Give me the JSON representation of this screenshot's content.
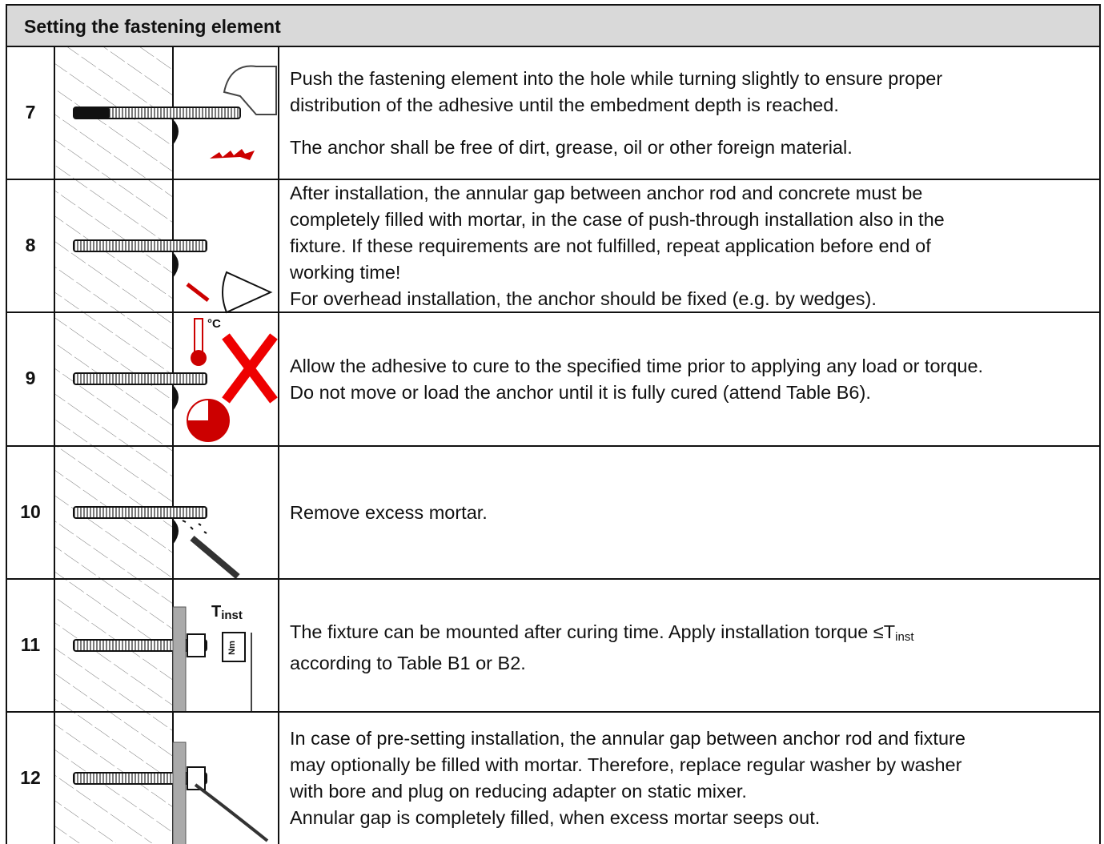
{
  "header": {
    "title": "Setting the fastening element"
  },
  "rows": [
    {
      "number": "7",
      "paragraphs": [
        [
          "Push the fastening element into the hole while turning slightly to ensure proper",
          "distribution of the adhesive until the embedment depth is reached."
        ],
        [
          "The anchor shall be free of dirt, grease, oil or other foreign material."
        ]
      ]
    },
    {
      "number": "8",
      "paragraphs": [
        [
          "After installation, the annular gap between anchor rod and concrete must be",
          "completely filled with mortar, in the case of push-through installation also in the",
          "fixture. If these requirements are not fulfilled, repeat application before end of",
          "working time!",
          "For overhead installation, the anchor should be fixed (e.g. by wedges)."
        ]
      ]
    },
    {
      "number": "9",
      "illustration_text": "°C",
      "paragraphs": [
        [
          "Allow the adhesive to cure to the specified time prior to applying any load or torque.",
          "Do not move or load the anchor until it is fully cured (attend Table B6)."
        ]
      ]
    },
    {
      "number": "10",
      "paragraphs": [
        [
          "Remove excess mortar."
        ]
      ]
    },
    {
      "number": "11",
      "illustration_text": {
        "symbol": "T",
        "subscript": "inst",
        "unit": "Nm"
      },
      "line_1": "The fixture can be mounted after curing time. Apply installation torque ≤T",
      "line_1_subscript": "inst",
      "line_2": "according to Table B1 or B2."
    },
    {
      "number": "12",
      "paragraphs": [
        [
          "In case of pre-setting installation, the annular gap between anchor rod and fixture",
          "may optionally be filled with mortar. Therefore, replace regular washer by washer",
          "with bore and plug on reducing adapter on static mixer.",
          "Annular gap is completely filled, when excess mortar seeps out."
        ]
      ]
    }
  ]
}
